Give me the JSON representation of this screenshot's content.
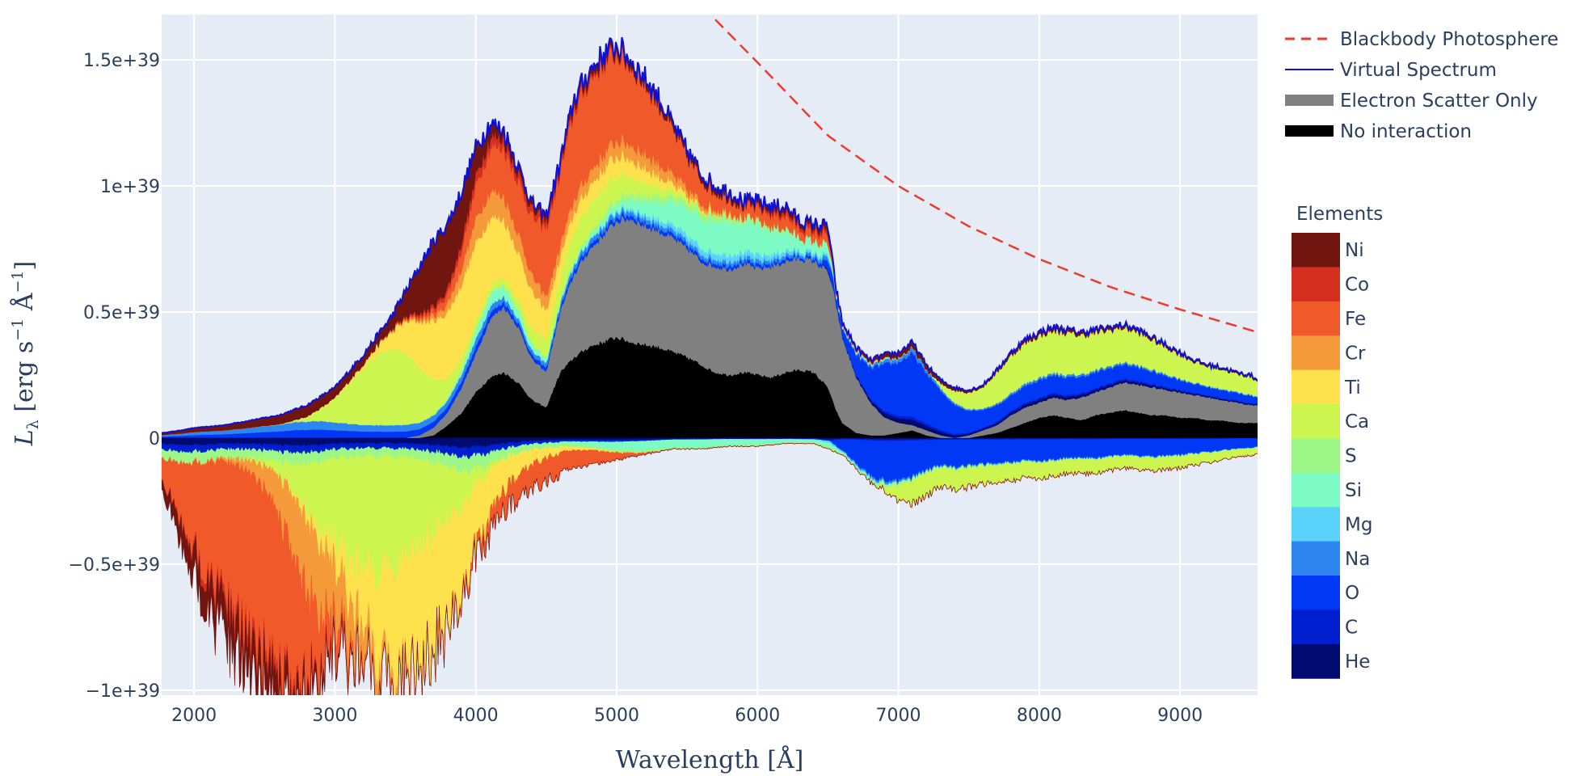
{
  "chart_data": {
    "type": "area",
    "title": "",
    "xlabel": "Wavelength [Å]",
    "xlabel_parts": {
      "main": "Wavelength [",
      "unit": "Å",
      "close": "]"
    },
    "ylabel": "L_λ [erg s^-1 Å^-1]",
    "ylabel_parts": {
      "symbol": "L",
      "sub": "λ",
      "open": " [erg s",
      "exp1": "−1",
      "mid": " Å",
      "exp2": "−1",
      "close": "]"
    },
    "xlim": [
      1770,
      9550
    ],
    "ylim": [
      -1.02e+39,
      1.68e+39
    ],
    "x_ticks": [
      {
        "value": 2000,
        "label": "2000"
      },
      {
        "value": 3000,
        "label": "3000"
      },
      {
        "value": 4000,
        "label": "4000"
      },
      {
        "value": 5000,
        "label": "5000"
      },
      {
        "value": 6000,
        "label": "6000"
      },
      {
        "value": 7000,
        "label": "7000"
      },
      {
        "value": 8000,
        "label": "8000"
      },
      {
        "value": 9000,
        "label": "9000"
      }
    ],
    "y_ticks": [
      {
        "value": 1.5e+39,
        "label": "1.5e+39"
      },
      {
        "value": 1e+39,
        "label": "1e+39"
      },
      {
        "value": 5e+38,
        "label": "0.5e+39"
      },
      {
        "value": 0,
        "label": "0"
      },
      {
        "value": -5e+38,
        "label": "−0.5e+39"
      },
      {
        "value": -1e+39,
        "label": "−1e+39"
      }
    ],
    "grid": true,
    "legend": [
      {
        "label": "Blackbody Photosphere",
        "style": "dash",
        "color": "#ef3a2c"
      },
      {
        "label": "Virtual Spectrum",
        "style": "line",
        "color": "#1010d0"
      },
      {
        "label": "Electron Scatter Only",
        "style": "fill",
        "color": "#808080"
      },
      {
        "label": "No interaction",
        "style": "fill",
        "color": "#000000"
      }
    ],
    "elements_title": "Elements",
    "elements": [
      {
        "name": "Ni",
        "color": "#70150f"
      },
      {
        "name": "Co",
        "color": "#d42e1e"
      },
      {
        "name": "Fe",
        "color": "#f05a2a"
      },
      {
        "name": "Cr",
        "color": "#f49a3a"
      },
      {
        "name": "Ti",
        "color": "#ffe04d"
      },
      {
        "name": "Ca",
        "color": "#ccf550"
      },
      {
        "name": "S",
        "color": "#9cf787"
      },
      {
        "name": "Si",
        "color": "#7cfcc4"
      },
      {
        "name": "Mg",
        "color": "#5ad2fb"
      },
      {
        "name": "Na",
        "color": "#2e86f0"
      },
      {
        "name": "O",
        "color": "#0038f5"
      },
      {
        "name": "C",
        "color": "#0020d0"
      },
      {
        "name": "He",
        "color": "#000a70"
      }
    ],
    "series": [
      {
        "name": "No interaction",
        "x": [
          1770,
          3500,
          3600,
          3700,
          3800,
          3900,
          4000,
          4100,
          4200,
          4300,
          4400,
          4500,
          4600,
          4700,
          4800,
          4900,
          5000,
          5100,
          5200,
          5300,
          5400,
          5500,
          5600,
          5700,
          5800,
          5900,
          6000,
          6100,
          6200,
          6300,
          6400,
          6500,
          6550,
          6600,
          6700,
          6800,
          6900,
          7000,
          7100,
          7200,
          7300,
          7400,
          7500,
          7600,
          7700,
          7800,
          7900,
          8000,
          8100,
          8200,
          8300,
          8400,
          8500,
          8600,
          8700,
          8800,
          8900,
          9000,
          9100,
          9200,
          9300,
          9400,
          9500,
          9550
        ],
        "y": [
          0,
          0,
          0,
          1e+37,
          5e+37,
          1e+38,
          1.8e+38,
          2.4e+38,
          2.6e+38,
          2.2e+38,
          1.5e+38,
          1.2e+38,
          2.6e+38,
          3.2e+38,
          3.6e+38,
          3.8e+38,
          4e+38,
          3.8e+38,
          3.7e+38,
          3.6e+38,
          3.4e+38,
          3.2e+38,
          2.9e+38,
          2.6e+38,
          2.5e+38,
          2.6e+38,
          2.5e+38,
          2.4e+38,
          2.6e+38,
          2.7e+38,
          2.6e+38,
          2e+38,
          1.2e+38,
          6e+37,
          2e+37,
          1e+37,
          1e+37,
          2e+37,
          3e+37,
          1e+37,
          0,
          0,
          0,
          1e+37,
          2e+37,
          4e+37,
          6e+37,
          8e+37,
          9e+37,
          8e+37,
          7e+37,
          9e+37,
          1e+38,
          1.1e+38,
          1e+38,
          9e+37,
          9e+37,
          8e+37,
          8e+37,
          7e+37,
          7e+37,
          6e+37,
          6e+37,
          6e+37
        ]
      },
      {
        "name": "Electron Scatter Only",
        "x": [
          1770,
          3500,
          3600,
          3700,
          3800,
          3900,
          4000,
          4100,
          4200,
          4300,
          4400,
          4500,
          4600,
          4700,
          4800,
          4900,
          5000,
          5100,
          5200,
          5300,
          5400,
          5500,
          5600,
          5700,
          5800,
          5900,
          6000,
          6100,
          6200,
          6300,
          6400,
          6500,
          6550,
          6600,
          6700,
          6800,
          6900,
          7000,
          7100,
          7200,
          7300,
          7400,
          7500,
          7600,
          7700,
          7800,
          7900,
          8000,
          8100,
          8200,
          8300,
          8400,
          8500,
          8600,
          8700,
          8800,
          8900,
          9000,
          9100,
          9200,
          9300,
          9400,
          9500,
          9550
        ],
        "y": [
          0,
          0,
          1e+37,
          4e+37,
          1e+38,
          2e+38,
          3.3e+38,
          4.7e+38,
          5.2e+38,
          4.4e+38,
          3.1e+38,
          2.6e+38,
          5e+38,
          6.5e+38,
          7.4e+38,
          8e+38,
          8.6e+38,
          8.7e+38,
          8.4e+38,
          8.2e+38,
          7.9e+38,
          7.5e+38,
          7e+38,
          6.8e+38,
          6.7e+38,
          6.9e+38,
          6.7e+38,
          6.8e+38,
          7e+38,
          7.1e+38,
          7e+38,
          6.6e+38,
          5.5e+38,
          4e+38,
          2.4e+38,
          1.4e+38,
          8e+37,
          6e+37,
          5e+37,
          3e+37,
          1e+37,
          0,
          1e+37,
          3e+37,
          5e+37,
          9e+37,
          1.2e+38,
          1.4e+38,
          1.6e+38,
          1.5e+38,
          1.6e+38,
          1.8e+38,
          2e+38,
          2.2e+38,
          2.1e+38,
          2e+38,
          1.9e+38,
          1.8e+38,
          1.7e+38,
          1.6e+38,
          1.5e+38,
          1.4e+38,
          1.3e+38,
          1.3e+38
        ]
      },
      {
        "name": "Virtual Spectrum",
        "x": [
          1770,
          1900,
          2000,
          2200,
          2400,
          2600,
          2800,
          3000,
          3200,
          3400,
          3500,
          3600,
          3700,
          3800,
          3900,
          4000,
          4100,
          4200,
          4300,
          4400,
          4500,
          4600,
          4700,
          4800,
          4900,
          5000,
          5100,
          5200,
          5300,
          5400,
          5500,
          5600,
          5700,
          5800,
          5900,
          6000,
          6100,
          6200,
          6300,
          6400,
          6500,
          6550,
          6600,
          6700,
          6800,
          6900,
          7000,
          7100,
          7200,
          7300,
          7400,
          7500,
          7600,
          7700,
          7800,
          7900,
          8000,
          8100,
          8200,
          8300,
          8400,
          8500,
          8600,
          8700,
          8800,
          8900,
          9000,
          9100,
          9200,
          9300,
          9400,
          9500,
          9550
        ],
        "y": [
          2e+37,
          3e+37,
          4e+37,
          5e+37,
          7e+37,
          9e+37,
          1.3e+38,
          2e+38,
          3.3e+38,
          4.8e+38,
          5.8e+38,
          6.8e+38,
          7.8e+38,
          8.5e+38,
          9.8e+38,
          1.15e+39,
          1.25e+39,
          1.22e+39,
          1.08e+39,
          9.3e+38,
          8.8e+38,
          1.1e+39,
          1.35e+39,
          1.45e+39,
          1.52e+39,
          1.56e+39,
          1.5e+39,
          1.43e+39,
          1.35e+39,
          1.24e+39,
          1.14e+39,
          1.05e+39,
          1e+39,
          9.8e+38,
          9.4e+38,
          9.4e+38,
          9.2e+38,
          9.2e+38,
          8.6e+38,
          8.5e+38,
          8.4e+38,
          6.2e+38,
          4.6e+38,
          3.6e+38,
          3.1e+38,
          3.3e+38,
          3.4e+38,
          3.8e+38,
          2.9e+38,
          2.3e+38,
          2e+38,
          1.9e+38,
          2.1e+38,
          2.7e+38,
          3.4e+38,
          3.9e+38,
          4.2e+38,
          4.4e+38,
          4.3e+38,
          4.2e+38,
          4.3e+38,
          4.4e+38,
          4.5e+38,
          4.3e+38,
          4e+38,
          3.7e+38,
          3.4e+38,
          3.1e+38,
          2.9e+38,
          2.8e+38,
          2.6e+38,
          2.5e+38,
          2.3e+38
        ]
      },
      {
        "name": "Blackbody Photosphere",
        "x": [
          5700,
          6000,
          6500,
          7000,
          7500,
          8000,
          8500,
          9000,
          9550
        ],
        "y": [
          1.66e+39,
          1.49e+39,
          1.2e+39,
          1e+39,
          8.4e+38,
          7.1e+38,
          6e+38,
          5.1e+38,
          4.2e+38
        ]
      },
      {
        "name": "Absorption (negative, total)",
        "x": [
          1770,
          2000,
          2200,
          2400,
          2600,
          2800,
          3000,
          3200,
          3400,
          3600,
          3700,
          3800,
          3900,
          4000,
          4200,
          4400,
          4600,
          4800,
          5000,
          5200,
          5400,
          5600,
          5800,
          6000,
          6200,
          6400,
          6600,
          6700,
          6800,
          6900,
          7000,
          7100,
          7200,
          7300,
          7400,
          7500,
          7600,
          7700,
          7800,
          7900,
          8000,
          8200,
          8400,
          8600,
          8800,
          9000,
          9200,
          9400,
          9550
        ],
        "y": [
          -1.5e+38,
          -4.5e+38,
          -6.5e+38,
          -7.8e+38,
          -9e+38,
          -8.5e+38,
          -7e+38,
          -7.2e+38,
          -8.2e+38,
          -7.6e+38,
          -6.8e+38,
          -6.4e+38,
          -5.2e+38,
          -3.8e+38,
          -2.4e+38,
          -1.6e+38,
          -1.2e+38,
          -1e+38,
          -8e+37,
          -6e+37,
          -4e+37,
          -4e+37,
          -3e+37,
          -3e+37,
          -2e+37,
          -2e+37,
          -6e+37,
          -1.1e+38,
          -1.6e+38,
          -1.9e+38,
          -2.3e+38,
          -2.4e+38,
          -2.1e+38,
          -1.8e+38,
          -1.9e+38,
          -1.8e+38,
          -1.7e+38,
          -1.6e+38,
          -1.6e+38,
          -1.4e+38,
          -1.5e+38,
          -1.3e+38,
          -1.3e+38,
          -1.1e+38,
          -1.2e+38,
          -1.1e+38,
          -9e+37,
          -7e+37,
          -6e+37
        ]
      }
    ]
  }
}
